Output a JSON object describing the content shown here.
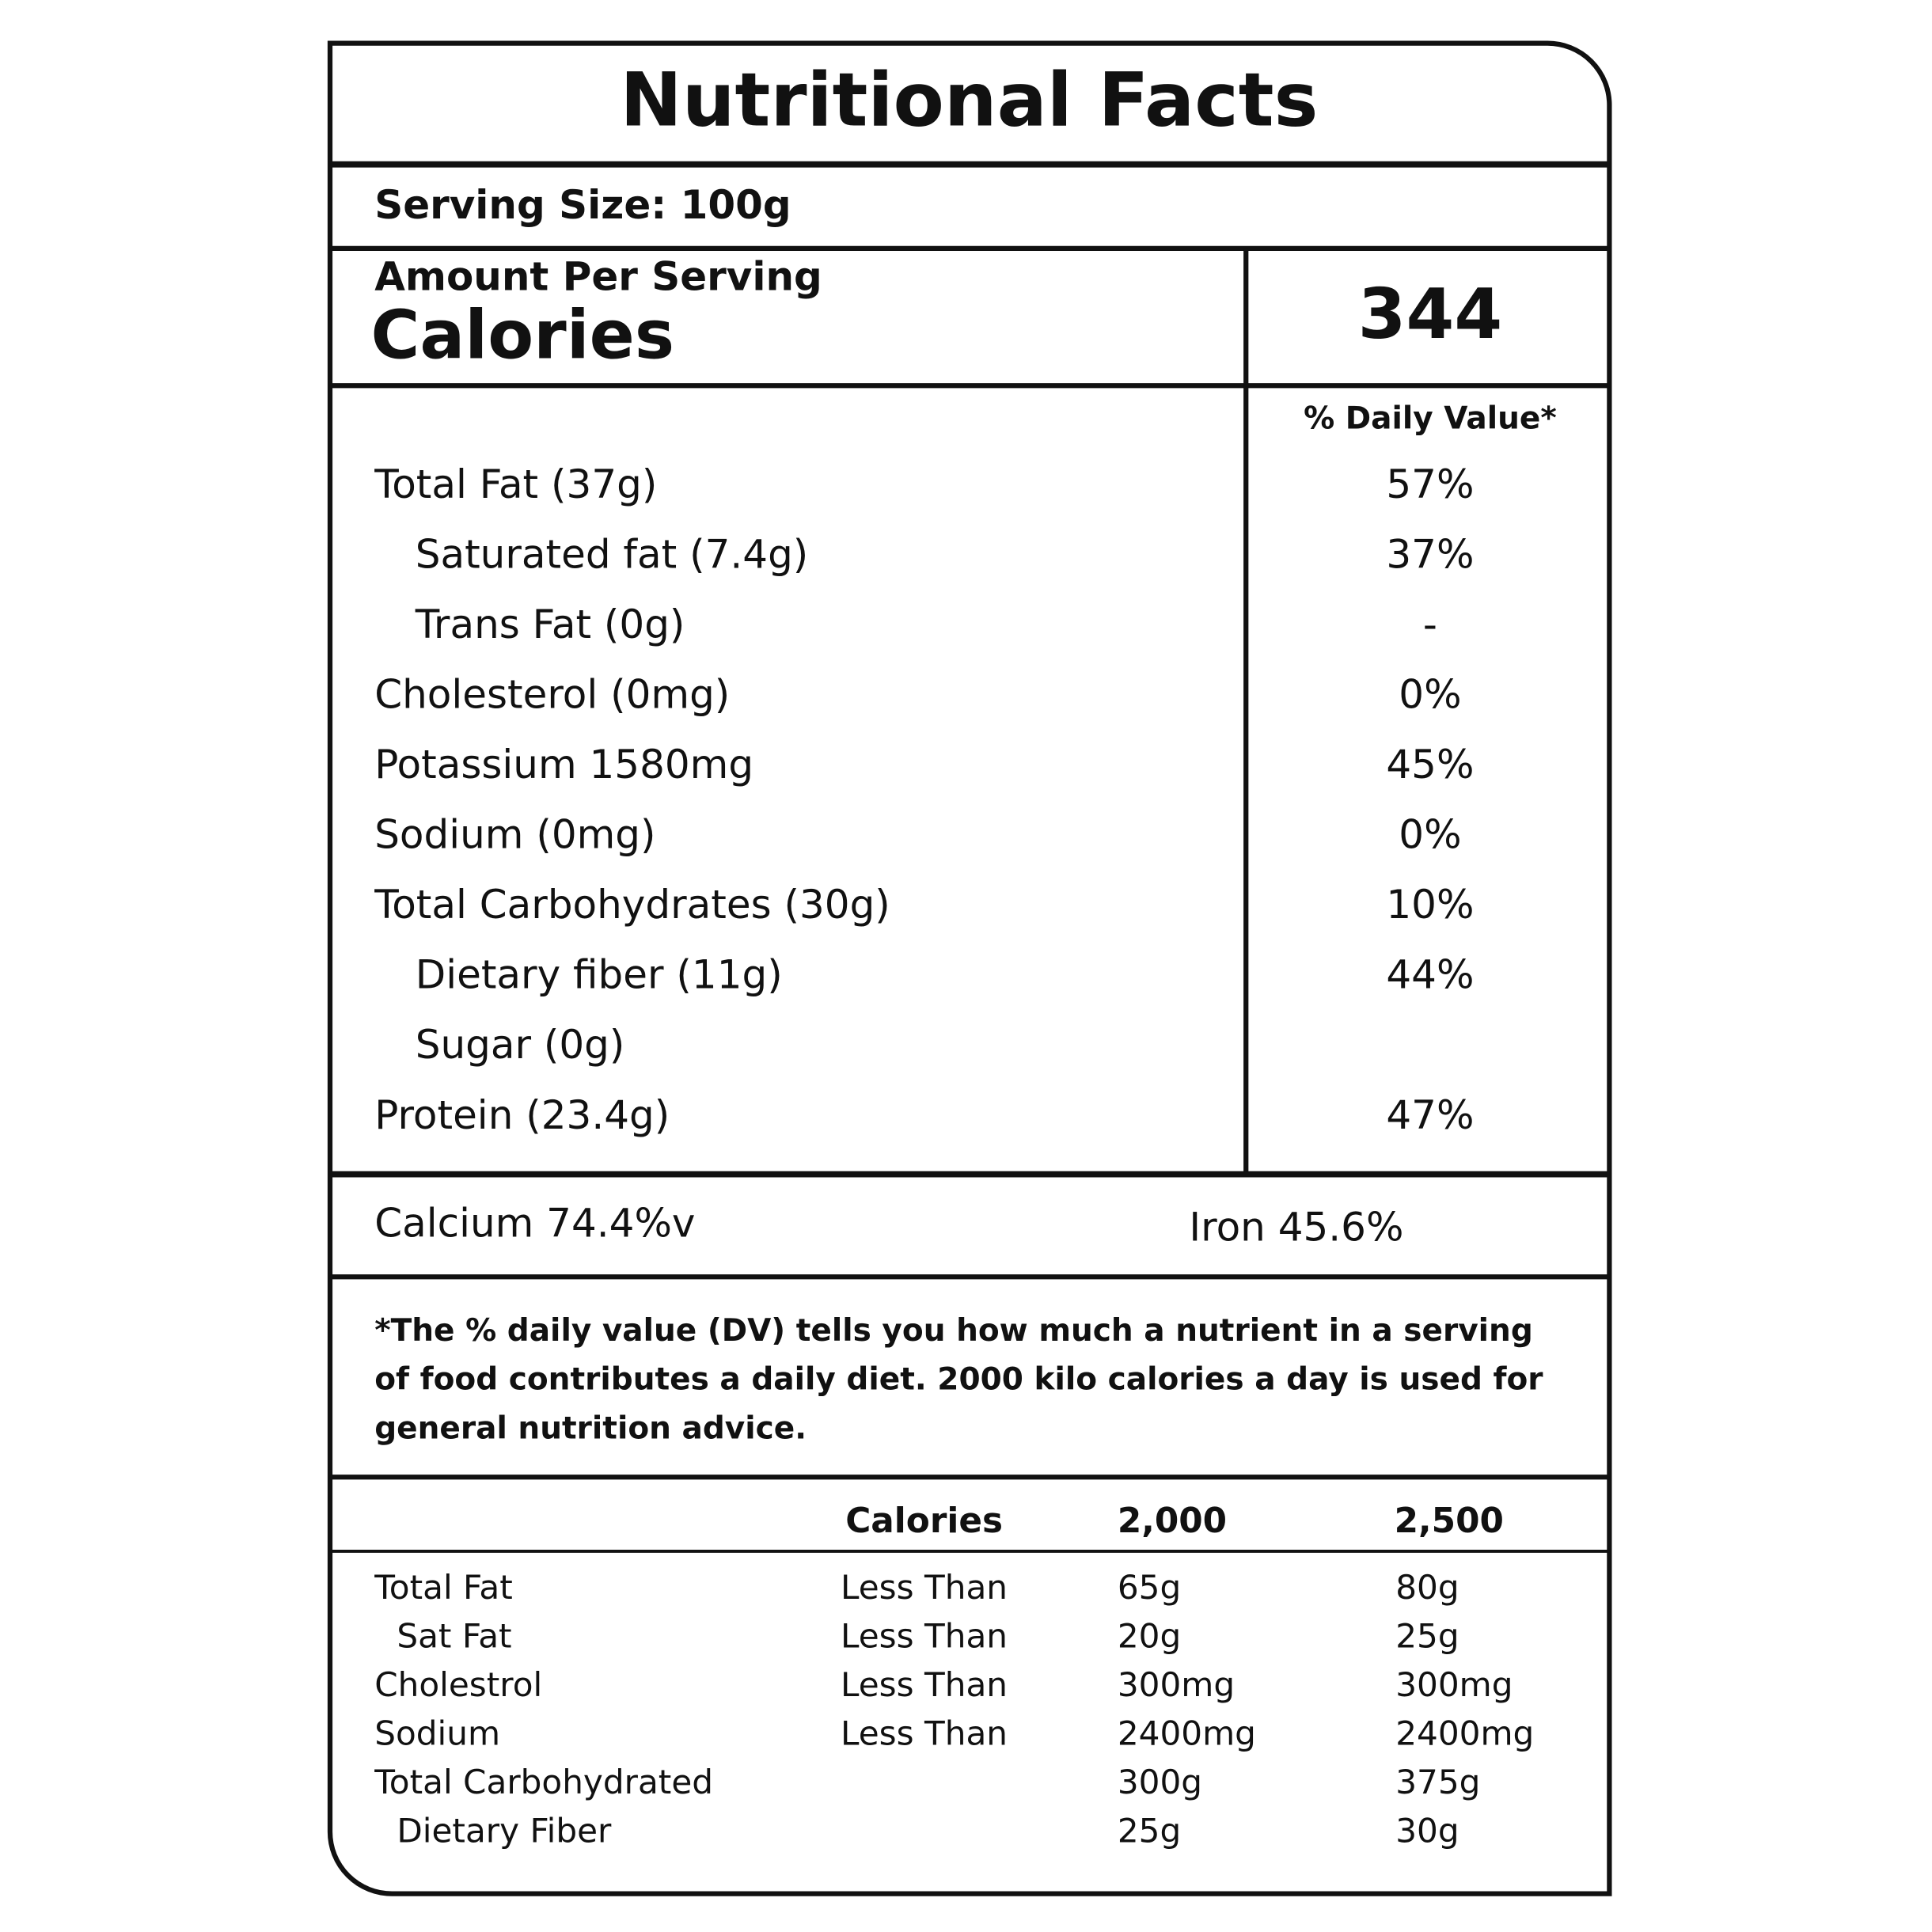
{
  "header": {
    "title": "Nutritional Facts",
    "serving_size": "Serving Size: 100g"
  },
  "calories": {
    "label_top": "Amount Per Serving",
    "label": "Calories",
    "value": "344"
  },
  "daily_value_header": "% Daily Value*",
  "nutrients": [
    {
      "name": "Total Fat (37g)",
      "dv": "57%",
      "sub": [
        {
          "name": "Saturated fat (7.4g)",
          "dv": "37%"
        },
        {
          "name": "Trans Fat (0g)",
          "dv": "-"
        }
      ]
    },
    {
      "name": "Cholesterol (0mg)",
      "dv": "0%"
    },
    {
      "name": "Potassium 1580mg",
      "dv": "45%"
    },
    {
      "name": "Sodium (0mg)",
      "dv": "0%"
    },
    {
      "name": "Total Carbohydrates  (30g)",
      "dv": "10%",
      "sub": [
        {
          "name": "Dietary fiber (11g)",
          "dv": "44%"
        },
        {
          "name": "Sugar (0g)"
        }
      ]
    },
    {
      "name": "Protein (23.4g)",
      "dv": "47%"
    }
  ],
  "minerals": {
    "calcium": "Calcium 74.4%v",
    "iron": "Iron 45.6%"
  },
  "footnote": [
    "*The % daily value (DV) tells you how much a nutrient in a serving",
    "of food contributes a daily diet. 2000 kilo calories a day is used for",
    "general nutrition advice."
  ],
  "reference": {
    "header": [
      "Calories",
      "2,000",
      "2,500"
    ],
    "rows": [
      {
        "name": "Total Fat",
        "qualifier": "Less Than",
        "c2000": "65g",
        "c2500": "80g",
        "sub": [
          {
            "name": "Sat Fat",
            "qualifier": "Less Than",
            "c2000": "20g",
            "c2500": "25g"
          }
        ]
      },
      {
        "name": "Cholestrol",
        "qualifier": "Less Than",
        "c2000": "300mg",
        "c2500": "300mg"
      },
      {
        "name": "Sodium",
        "qualifier": "Less Than",
        "c2000": "2400mg",
        "c2500": "2400mg"
      },
      {
        "name": "Total Carbohydrated",
        "c2000": "300g",
        "c2500": "375g",
        "sub": [
          {
            "name": "Dietary Fiber",
            "c2000": "25g",
            "c2500": "30g"
          }
        ]
      }
    ]
  }
}
